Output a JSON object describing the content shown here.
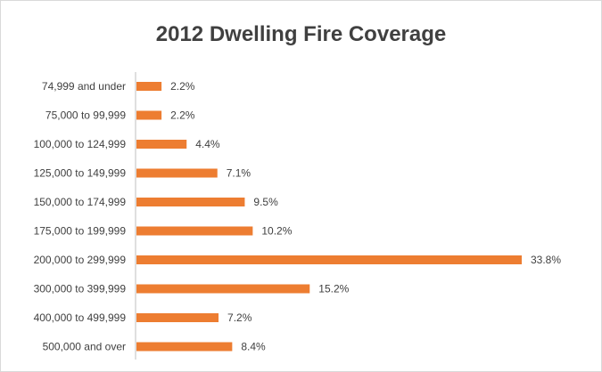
{
  "chart_data": {
    "type": "bar",
    "orientation": "horizontal",
    "title": "2012 Dwelling Fire Coverage",
    "categories": [
      "74,999 and under",
      "75,000 to 99,999",
      "100,000 to 124,999",
      "125,000 to 149,999",
      "150,000 to 174,999",
      "175,000 to 199,999",
      "200,000 to 299,999",
      "300,000 to 399,999",
      "400,000 to 499,999",
      "500,000 and over"
    ],
    "values": [
      2.2,
      2.2,
      4.4,
      7.1,
      9.5,
      10.2,
      33.8,
      15.2,
      7.2,
      8.4
    ],
    "value_labels": [
      "2.2%",
      "2.2%",
      "4.4%",
      "7.1%",
      "9.5%",
      "10.2%",
      "33.8%",
      "15.2%",
      "7.2%",
      "8.4%"
    ],
    "xlim": [
      0,
      34
    ],
    "bar_color": "#ed7d31",
    "grid": false,
    "legend": "none"
  }
}
